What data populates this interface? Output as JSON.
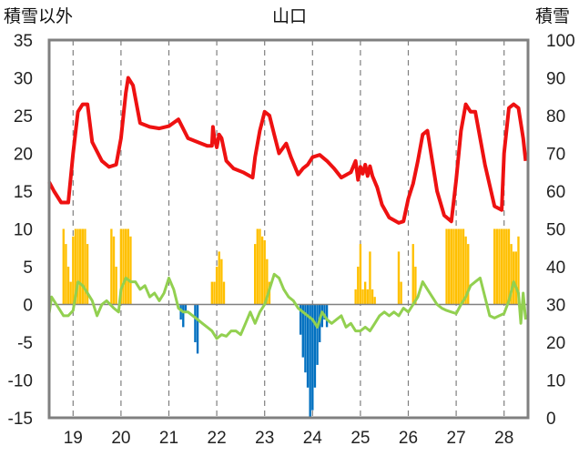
{
  "chart_data": {
    "type": "bar+line",
    "title": "山口",
    "left_axis_label": "積雪以外",
    "right_axis_label": "積雪",
    "left_ylim": [
      -15,
      35
    ],
    "left_yticks": [
      -15,
      -10,
      -5,
      0,
      5,
      10,
      15,
      20,
      25,
      30,
      35
    ],
    "right_ylim": [
      0,
      100
    ],
    "right_yticks": [
      0,
      10,
      20,
      30,
      40,
      50,
      60,
      70,
      80,
      90,
      100
    ],
    "xlim": [
      18.5,
      28.5
    ],
    "x_tick_labels": [
      "19",
      "20",
      "21",
      "22",
      "23",
      "24",
      "25",
      "26",
      "27",
      "28"
    ],
    "grid": "dashed vertical lines at day boundaries",
    "colors": {
      "red_line": "#ee1111",
      "green_line": "#92d050",
      "orange_bars": "#ffc000",
      "blue_bars": "#0070c0",
      "axis": "#808080"
    },
    "red_line": {
      "x": [
        18.5,
        18.6,
        18.75,
        18.9,
        19.0,
        19.1,
        19.2,
        19.3,
        19.4,
        19.6,
        19.75,
        19.9,
        20.0,
        20.1,
        20.15,
        20.25,
        20.4,
        20.6,
        20.8,
        21.0,
        21.2,
        21.4,
        21.6,
        21.8,
        21.9,
        21.92,
        21.95,
        22.0,
        22.05,
        22.1,
        22.2,
        22.35,
        22.55,
        22.75,
        22.8,
        22.9,
        23.0,
        23.1,
        23.2,
        23.3,
        23.45,
        23.55,
        23.7,
        23.8,
        23.9,
        24.0,
        24.15,
        24.3,
        24.45,
        24.6,
        24.8,
        24.9,
        24.95,
        25.0,
        25.05,
        25.1,
        25.15,
        25.2,
        25.25,
        25.35,
        25.45,
        25.6,
        25.8,
        25.9,
        26.0,
        26.1,
        26.2,
        26.3,
        26.4,
        26.5,
        26.6,
        26.75,
        26.9,
        27.0,
        27.1,
        27.2,
        27.3,
        27.4,
        27.6,
        27.8,
        27.95,
        28.0,
        28.1,
        28.2,
        28.3,
        28.4,
        28.45
      ],
      "y": [
        16.2,
        15,
        13.5,
        13.5,
        20,
        25.5,
        26.5,
        26.5,
        21.5,
        19,
        18.2,
        18.5,
        22,
        28,
        30,
        29,
        24,
        23.5,
        23.3,
        23.6,
        24.5,
        22,
        21.5,
        21,
        21,
        23.5,
        22,
        20.8,
        22.5,
        22,
        19,
        18,
        17.5,
        16.8,
        19.5,
        23,
        25.5,
        25,
        22.5,
        20,
        21.3,
        19.5,
        17.2,
        18,
        18.5,
        19.5,
        19.8,
        19,
        18,
        16.8,
        17.5,
        19,
        16.5,
        18.2,
        17.3,
        18.5,
        17,
        18.3,
        17,
        15.5,
        13.2,
        11.5,
        10.8,
        11,
        14,
        16,
        19,
        22.5,
        23,
        19,
        15,
        11.8,
        11,
        16.5,
        23,
        26.5,
        25.5,
        25.5,
        18.5,
        13,
        12.5,
        20,
        26,
        26.5,
        26,
        22,
        19
      ],
      "axis": "left"
    },
    "green_line": {
      "x": [
        18.5,
        18.55,
        18.65,
        18.8,
        18.9,
        19.0,
        19.1,
        19.2,
        19.3,
        19.4,
        19.5,
        19.6,
        19.7,
        19.85,
        19.95,
        20.0,
        20.1,
        20.2,
        20.3,
        20.4,
        20.5,
        20.6,
        20.7,
        20.8,
        20.9,
        21.0,
        21.1,
        21.2,
        21.3,
        21.4,
        21.5,
        21.6,
        21.7,
        21.8,
        21.9,
        22.0,
        22.1,
        22.2,
        22.3,
        22.4,
        22.5,
        22.6,
        22.7,
        22.8,
        22.9,
        23.0,
        23.1,
        23.2,
        23.3,
        23.4,
        23.5,
        23.6,
        23.7,
        23.8,
        23.9,
        24.0,
        24.1,
        24.2,
        24.3,
        24.4,
        24.5,
        24.6,
        24.7,
        24.8,
        24.9,
        25.0,
        25.1,
        25.2,
        25.3,
        25.4,
        25.5,
        25.6,
        25.7,
        25.8,
        25.9,
        26.0,
        26.1,
        26.2,
        26.3,
        26.4,
        26.5,
        26.6,
        26.7,
        26.8,
        26.9,
        27.0,
        27.1,
        27.2,
        27.3,
        27.4,
        27.5,
        27.6,
        27.7,
        27.8,
        27.9,
        28.0,
        28.1,
        28.2,
        28.3,
        28.35,
        28.4,
        28.45
      ],
      "y": [
        -1.2,
        1,
        0,
        -1.5,
        -1.5,
        -0.8,
        3,
        2.5,
        1.5,
        0.5,
        -1.5,
        0,
        0.5,
        -0.5,
        -1,
        2,
        3.5,
        3,
        3,
        2,
        2.5,
        1,
        1.5,
        0.5,
        1.5,
        3.5,
        2,
        -0.5,
        -1,
        -1,
        -1.5,
        -2,
        -2.5,
        -3,
        -3.5,
        -4.5,
        -4,
        -4.2,
        -3.5,
        -3.5,
        -4,
        -2.5,
        -1,
        -2.5,
        -1,
        0,
        2,
        4,
        3.5,
        2,
        1,
        0.5,
        -0.5,
        -1,
        -1.5,
        -2,
        -3,
        -1,
        -2,
        -2.5,
        -2,
        -1.5,
        -3,
        -2.5,
        -3.5,
        -3.5,
        -3,
        -3.5,
        -2.5,
        -1.5,
        -1,
        -1.5,
        -1,
        -1.5,
        -0.5,
        -1,
        0,
        1,
        3,
        2,
        1,
        0,
        -0.5,
        -0.8,
        -1,
        -1.2,
        0,
        1,
        2.5,
        3,
        3.5,
        1,
        -1.5,
        -1.8,
        -1.5,
        -1.2,
        0.5,
        3,
        1.5,
        -2.5,
        1.5,
        -2
      ],
      "axis": "left"
    },
    "orange_bars": [
      {
        "x": 18.8,
        "y": 10
      },
      {
        "x": 18.85,
        "y": 8
      },
      {
        "x": 18.9,
        "y": 5
      },
      {
        "x": 18.95,
        "y": 3
      },
      {
        "x": 19.0,
        "y": 9
      },
      {
        "x": 19.05,
        "y": 10
      },
      {
        "x": 19.1,
        "y": 10
      },
      {
        "x": 19.15,
        "y": 10
      },
      {
        "x": 19.2,
        "y": 10
      },
      {
        "x": 19.25,
        "y": 10
      },
      {
        "x": 19.3,
        "y": 8
      },
      {
        "x": 19.8,
        "y": 10
      },
      {
        "x": 19.85,
        "y": 9
      },
      {
        "x": 19.9,
        "y": 5
      },
      {
        "x": 20.0,
        "y": 10
      },
      {
        "x": 20.05,
        "y": 10
      },
      {
        "x": 20.1,
        "y": 10
      },
      {
        "x": 20.15,
        "y": 10
      },
      {
        "x": 20.2,
        "y": 9
      },
      {
        "x": 21.9,
        "y": 3
      },
      {
        "x": 21.95,
        "y": 3
      },
      {
        "x": 22.0,
        "y": 5
      },
      {
        "x": 22.05,
        "y": 7
      },
      {
        "x": 22.1,
        "y": 6
      },
      {
        "x": 22.15,
        "y": 3
      },
      {
        "x": 22.8,
        "y": 8
      },
      {
        "x": 22.85,
        "y": 10
      },
      {
        "x": 22.9,
        "y": 10
      },
      {
        "x": 22.95,
        "y": 9
      },
      {
        "x": 23.0,
        "y": 8.5
      },
      {
        "x": 23.05,
        "y": 6
      },
      {
        "x": 23.1,
        "y": 3
      },
      {
        "x": 24.9,
        "y": 2
      },
      {
        "x": 24.95,
        "y": 5
      },
      {
        "x": 25.0,
        "y": 8
      },
      {
        "x": 25.05,
        "y": 2
      },
      {
        "x": 25.1,
        "y": 3
      },
      {
        "x": 25.15,
        "y": 2
      },
      {
        "x": 25.2,
        "y": 7
      },
      {
        "x": 25.25,
        "y": 2
      },
      {
        "x": 25.3,
        "y": 1
      },
      {
        "x": 25.8,
        "y": 7
      },
      {
        "x": 25.85,
        "y": 3
      },
      {
        "x": 26.1,
        "y": 8
      },
      {
        "x": 26.15,
        "y": 5
      },
      {
        "x": 26.8,
        "y": 10
      },
      {
        "x": 26.85,
        "y": 10
      },
      {
        "x": 26.9,
        "y": 10
      },
      {
        "x": 26.95,
        "y": 10
      },
      {
        "x": 27.0,
        "y": 10
      },
      {
        "x": 27.05,
        "y": 10
      },
      {
        "x": 27.1,
        "y": 10
      },
      {
        "x": 27.15,
        "y": 10
      },
      {
        "x": 27.2,
        "y": 9
      },
      {
        "x": 27.25,
        "y": 8
      },
      {
        "x": 27.8,
        "y": 10
      },
      {
        "x": 27.85,
        "y": 10
      },
      {
        "x": 27.9,
        "y": 10
      },
      {
        "x": 27.95,
        "y": 10
      },
      {
        "x": 28.0,
        "y": 10
      },
      {
        "x": 28.05,
        "y": 10
      },
      {
        "x": 28.1,
        "y": 10
      },
      {
        "x": 28.15,
        "y": 8
      },
      {
        "x": 28.2,
        "y": 7
      },
      {
        "x": 28.25,
        "y": 7
      },
      {
        "x": 28.3,
        "y": 9
      }
    ],
    "blue_bars": [
      {
        "x": 21.25,
        "y": -2
      },
      {
        "x": 21.3,
        "y": -3
      },
      {
        "x": 21.35,
        "y": -1
      },
      {
        "x": 21.55,
        "y": -5
      },
      {
        "x": 21.6,
        "y": -6.5
      },
      {
        "x": 23.75,
        "y": -4
      },
      {
        "x": 23.8,
        "y": -7
      },
      {
        "x": 23.85,
        "y": -9
      },
      {
        "x": 23.9,
        "y": -11
      },
      {
        "x": 23.95,
        "y": -15
      },
      {
        "x": 24.0,
        "y": -14
      },
      {
        "x": 24.05,
        "y": -11
      },
      {
        "x": 24.1,
        "y": -8
      },
      {
        "x": 24.15,
        "y": -5
      },
      {
        "x": 24.2,
        "y": -3
      },
      {
        "x": 24.25,
        "y": -2
      },
      {
        "x": 24.3,
        "y": -3
      }
    ]
  }
}
